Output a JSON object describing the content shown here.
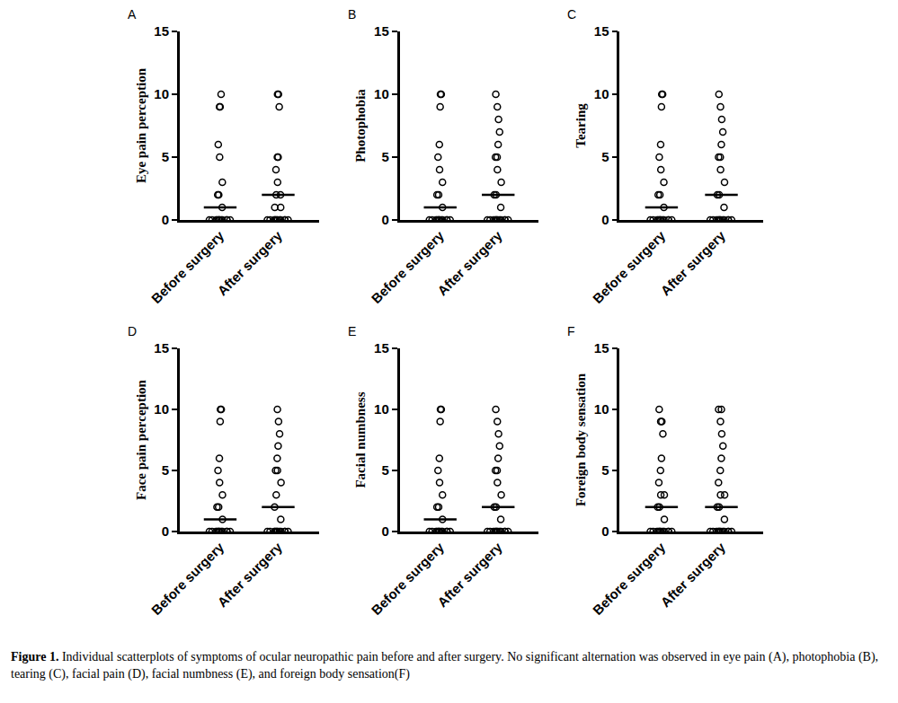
{
  "chart_data": [
    {
      "type": "scatter",
      "title": "A",
      "y_label": "Eye pain perception",
      "categories": [
        "Before surgery",
        "After surgery"
      ],
      "values": [
        [
          0,
          0,
          0,
          0,
          0,
          0,
          0,
          0,
          0,
          0,
          0,
          0,
          1,
          2,
          2,
          3,
          5,
          6,
          9,
          9,
          10
        ],
        [
          0,
          0,
          0,
          0,
          0,
          0,
          0,
          0,
          0,
          0,
          0,
          0,
          1,
          1,
          2,
          2,
          3,
          4,
          5,
          5,
          9,
          10,
          10
        ]
      ],
      "upper_quartile": [
        1,
        2
      ],
      "ylim": [
        0,
        15
      ],
      "yticks": [
        0,
        5,
        10,
        15
      ],
      "marker": "circle-open",
      "color": "#000000"
    },
    {
      "type": "scatter",
      "title": "B",
      "y_label": "Photophobia",
      "categories": [
        "Before surgery",
        "After surgery"
      ],
      "values": [
        [
          0,
          0,
          0,
          0,
          0,
          0,
          0,
          0,
          0,
          0,
          0,
          0,
          1,
          2,
          2,
          3,
          4,
          5,
          6,
          9,
          10,
          10
        ],
        [
          0,
          0,
          0,
          0,
          0,
          0,
          0,
          0,
          0,
          0,
          0,
          0,
          1,
          2,
          2,
          3,
          4,
          5,
          5,
          6,
          7,
          8,
          9,
          10
        ]
      ],
      "upper_quartile": [
        1,
        2
      ],
      "ylim": [
        0,
        15
      ],
      "yticks": [
        0,
        5,
        10,
        15
      ],
      "marker": "circle-open",
      "color": "#000000"
    },
    {
      "type": "scatter",
      "title": "C",
      "y_label": "Tearing",
      "categories": [
        "Before surgery",
        "After surgery"
      ],
      "values": [
        [
          0,
          0,
          0,
          0,
          0,
          0,
          0,
          0,
          0,
          0,
          0,
          0,
          1,
          2,
          2,
          3,
          4,
          5,
          6,
          9,
          10,
          10
        ],
        [
          0,
          0,
          0,
          0,
          0,
          0,
          0,
          0,
          0,
          0,
          0,
          0,
          1,
          2,
          2,
          3,
          4,
          5,
          5,
          6,
          7,
          8,
          9,
          10
        ]
      ],
      "upper_quartile": [
        1,
        2
      ],
      "ylim": [
        0,
        15
      ],
      "yticks": [
        0,
        5,
        10,
        15
      ],
      "marker": "circle-open",
      "color": "#000000"
    },
    {
      "type": "scatter",
      "title": "D",
      "y_label": "Face pain perception",
      "categories": [
        "Before surgery",
        "After surgery"
      ],
      "values": [
        [
          0,
          0,
          0,
          0,
          0,
          0,
          0,
          0,
          0,
          0,
          0,
          0,
          1,
          2,
          2,
          3,
          4,
          5,
          6,
          9,
          10,
          10
        ],
        [
          0,
          0,
          0,
          0,
          0,
          0,
          0,
          0,
          0,
          0,
          0,
          0,
          1,
          2,
          3,
          4,
          5,
          5,
          6,
          7,
          8,
          9,
          10
        ]
      ],
      "upper_quartile": [
        1,
        2
      ],
      "ylim": [
        0,
        15
      ],
      "yticks": [
        0,
        5,
        10,
        15
      ],
      "marker": "circle-open",
      "color": "#000000"
    },
    {
      "type": "scatter",
      "title": "E",
      "y_label": "Facial numbness",
      "categories": [
        "Before surgery",
        "After surgery"
      ],
      "values": [
        [
          0,
          0,
          0,
          0,
          0,
          0,
          0,
          0,
          0,
          0,
          0,
          0,
          1,
          2,
          2,
          3,
          4,
          5,
          6,
          9,
          10,
          10
        ],
        [
          0,
          0,
          0,
          0,
          0,
          0,
          0,
          0,
          0,
          0,
          0,
          0,
          1,
          2,
          2,
          3,
          4,
          5,
          5,
          6,
          7,
          8,
          9,
          10
        ]
      ],
      "upper_quartile": [
        1,
        2
      ],
      "ylim": [
        0,
        15
      ],
      "yticks": [
        0,
        5,
        10,
        15
      ],
      "marker": "circle-open",
      "color": "#000000"
    },
    {
      "type": "scatter",
      "title": "F",
      "y_label": "Foreign body sensation",
      "categories": [
        "Before surgery",
        "After surgery"
      ],
      "values": [
        [
          0,
          0,
          0,
          0,
          0,
          0,
          0,
          0,
          0,
          0,
          0,
          0,
          1,
          2,
          2,
          3,
          3,
          4,
          5,
          6,
          8,
          9,
          9,
          10
        ],
        [
          0,
          0,
          0,
          0,
          0,
          0,
          0,
          0,
          0,
          0,
          0,
          0,
          1,
          2,
          2,
          3,
          3,
          4,
          5,
          6,
          7,
          8,
          9,
          10,
          10
        ]
      ],
      "upper_quartile": [
        2,
        2
      ],
      "ylim": [
        0,
        15
      ],
      "yticks": [
        0,
        5,
        10,
        15
      ],
      "marker": "circle-open",
      "color": "#000000"
    }
  ],
  "caption": {
    "label": "Figure 1.",
    "text": "Individual scatterplots of symptoms of ocular neuropathic pain before and after surgery. No significant alternation was observed in eye pain (A), photophobia (B), tearing (C), facial pain (D), facial numbness (E), and foreign body sensation(F)"
  }
}
